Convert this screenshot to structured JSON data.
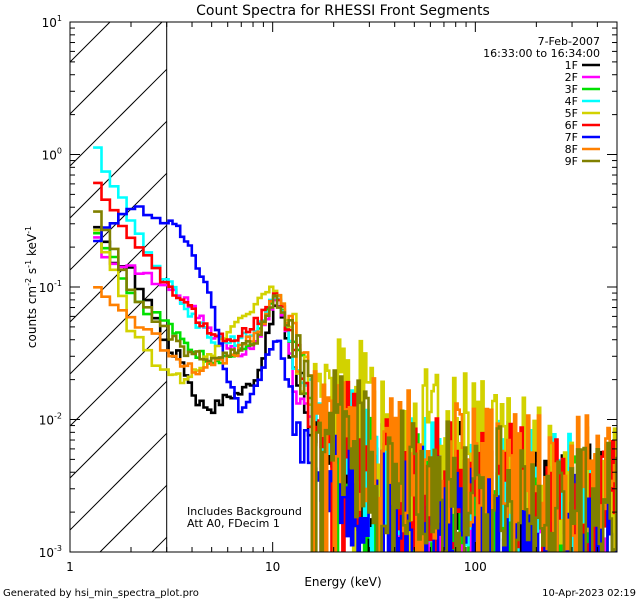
{
  "chart_data": {
    "type": "line",
    "title": "Count Spectra for RHESSI Front Segments",
    "xlabel": "Energy (keV)",
    "ylabel": {
      "text": "counts cm",
      "sup1": "-2",
      "mid": " s",
      "sup2": "-1",
      "end": " keV",
      "sup3": "-1"
    },
    "xscale": "log",
    "yscale": "log",
    "xlim": [
      1,
      500
    ],
    "ylim": [
      0.001,
      10
    ],
    "x_ticks": [
      {
        "value": 1,
        "label": "1"
      },
      {
        "value": 10,
        "label": "10"
      },
      {
        "value": 100,
        "label": "100"
      }
    ],
    "y_ticks": [
      {
        "value": 0.001,
        "base": "10",
        "exp": "-3"
      },
      {
        "value": 0.01,
        "base": "10",
        "exp": "-2"
      },
      {
        "value": 0.1,
        "base": "10",
        "exp": "-1"
      },
      {
        "value": 1,
        "base": "10",
        "exp": "0"
      },
      {
        "value": 10,
        "base": "10",
        "exp": "1"
      }
    ],
    "date": "7-Feb-2007",
    "time_range": "16:33:00 to 16:34:00",
    "hatched_region": {
      "x_max": 3
    },
    "annotation_lines": [
      "Includes Background",
      "Att A0, FDecim 1"
    ],
    "legend_position": "top-right",
    "footer_left": "Generated by hsi_min_spectra_plot.pro",
    "footer_right": "10-Apr-2023 02:19",
    "series": [
      {
        "name": "1F",
        "color": "#000000",
        "values": [
          0.3,
          0.17,
          0.13,
          0.075,
          0.035,
          0.03,
          0.014,
          0.012,
          0.015,
          0.016,
          0.022,
          0.08,
          0.03,
          0.011,
          0.006,
          0.0035,
          0.0022,
          0.003,
          0.0025,
          0.002
        ]
      },
      {
        "name": "2F",
        "color": "#ff00ff",
        "values": [
          0.25,
          0.16,
          0.14,
          0.12,
          0.1,
          0.085,
          0.065,
          0.045,
          0.035,
          0.032,
          0.04,
          0.085,
          0.03,
          0.012,
          0.006,
          0.0035,
          0.002,
          0.0018,
          0.0015,
          0.0012
        ]
      },
      {
        "name": "3F",
        "color": "#00e000",
        "values": [
          0.27,
          0.19,
          0.09,
          0.065,
          0.055,
          0.04,
          0.032,
          0.028,
          0.03,
          0.032,
          0.045,
          0.09,
          0.035,
          0.013,
          0.0065,
          0.0038,
          0.0024,
          0.0022,
          0.0018,
          0.0015
        ]
      },
      {
        "name": "4F",
        "color": "#00ffff",
        "values": [
          1.35,
          0.62,
          0.33,
          0.17,
          0.11,
          0.08,
          0.055,
          0.04,
          0.038,
          0.04,
          0.05,
          0.09,
          0.033,
          0.014,
          0.0075,
          0.0045,
          0.0032,
          0.003,
          0.0025,
          0.002
        ]
      },
      {
        "name": "5F",
        "color": "#d2d200",
        "values": [
          0.33,
          0.15,
          0.05,
          0.03,
          0.024,
          0.02,
          0.025,
          0.03,
          0.045,
          0.06,
          0.075,
          0.1,
          0.04,
          0.022,
          0.016,
          0.012,
          0.009,
          0.006,
          0.004,
          0.003
        ]
      },
      {
        "name": "6F",
        "color": "#ff0000",
        "values": [
          0.75,
          0.38,
          0.22,
          0.15,
          0.11,
          0.08,
          0.06,
          0.045,
          0.04,
          0.045,
          0.055,
          0.1,
          0.035,
          0.012,
          0.0065,
          0.0042,
          0.003,
          0.003,
          0.0025,
          0.002
        ]
      },
      {
        "name": "7F",
        "color": "#0000ff",
        "values": [
          0.22,
          0.32,
          0.38,
          0.36,
          0.32,
          0.26,
          0.16,
          0.08,
          0.02,
          0.012,
          0.02,
          0.045,
          0.012,
          0.005,
          0.003,
          0.0022,
          0.0018,
          0.0015,
          0.0013,
          0.0011
        ]
      },
      {
        "name": "8F",
        "color": "#ff8000",
        "values": [
          0.095,
          0.08,
          0.06,
          0.045,
          0.035,
          0.028,
          0.024,
          0.025,
          0.03,
          0.035,
          0.045,
          0.1,
          0.04,
          0.018,
          0.01,
          0.0065,
          0.0045,
          0.004,
          0.0035,
          0.003
        ]
      },
      {
        "name": "9F",
        "color": "#808000",
        "values": [
          0.4,
          0.22,
          0.1,
          0.06,
          0.045,
          0.035,
          0.03,
          0.028,
          0.03,
          0.033,
          0.042,
          0.085,
          0.035,
          0.014,
          0.008,
          0.005,
          0.0034,
          0.0028,
          0.0024,
          0.002
        ]
      }
    ],
    "x": [
      1.3,
      1.6,
      2.0,
      2.5,
      3.0,
      3.5,
      4.2,
      5.0,
      6.0,
      7.0,
      8.5,
      10.5,
      12.5,
      15,
      20,
      30,
      50,
      100,
      200,
      400
    ]
  }
}
